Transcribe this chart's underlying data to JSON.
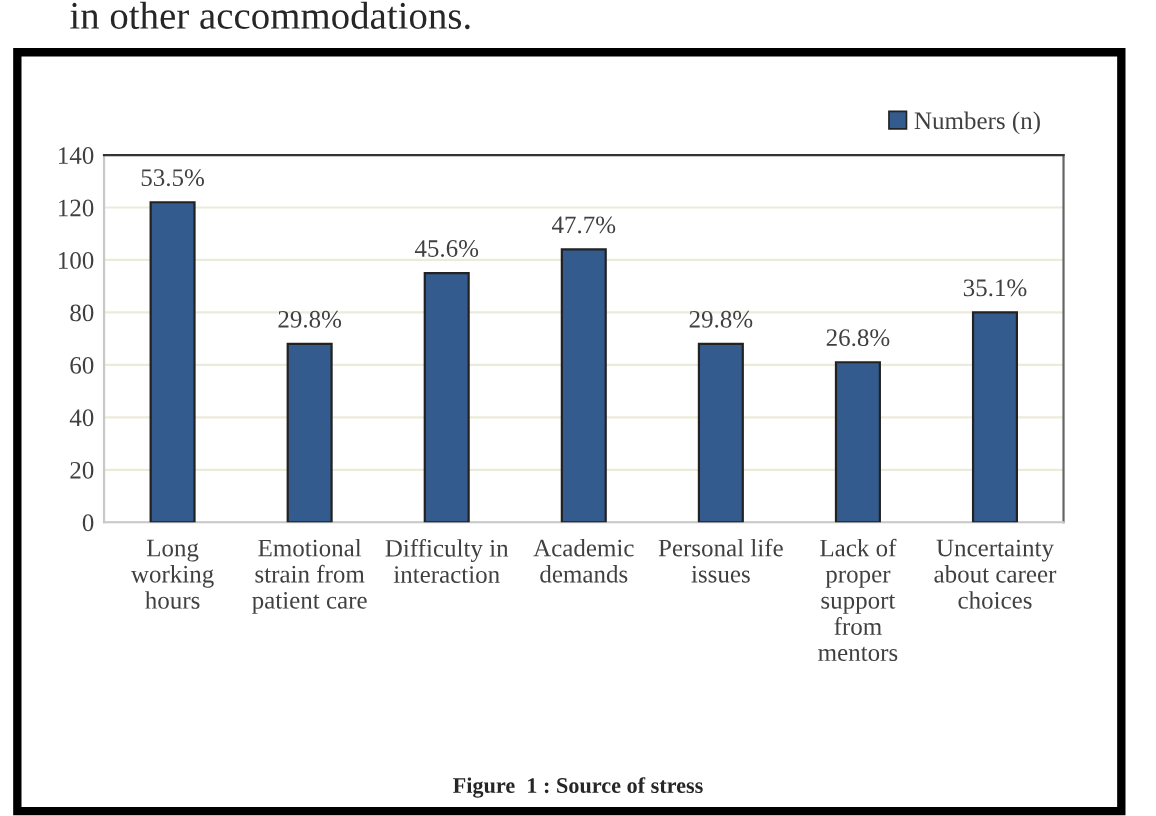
{
  "chart_data": {
    "type": "bar",
    "categories": [
      "Long\nworking\nhours",
      "Emotional\nstrain from\npatient care",
      "Difficulty in\ninteraction",
      "Academic\ndemands",
      "Personal life\nissues",
      "Lack of\nproper\nsupport\nfrom\nmentors",
      "Uncertainty\nabout career\nchoices"
    ],
    "series": [
      {
        "name": "Numbers (n)",
        "color": "#335b8e",
        "values": [
          122,
          68,
          95,
          104,
          68,
          61,
          80
        ]
      }
    ],
    "value_labels": [
      "53.5%",
      "29.8%",
      "45.6%",
      "47.7%",
      "29.8%",
      "26.8%",
      "35.1%"
    ],
    "ylim": [
      0,
      140
    ],
    "yticks": [
      0,
      20,
      40,
      60,
      80,
      100,
      120,
      140
    ],
    "grid": "y",
    "legend": "top right",
    "annotations": [
      "in other accommodations.",
      "Figure  1 : Source of stress"
    ]
  }
}
